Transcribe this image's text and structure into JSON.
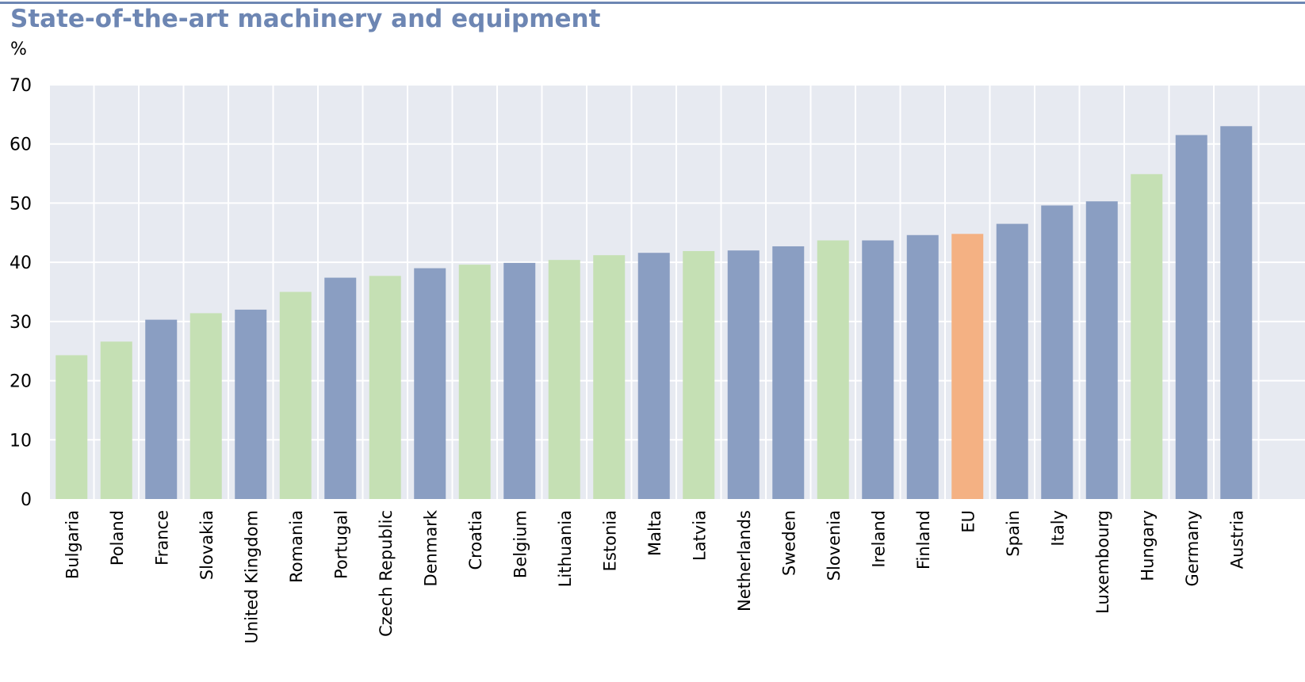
{
  "chart_data": {
    "type": "bar",
    "title": "State-of-the-art machinery and equipment",
    "ylabel": "%",
    "xlabel": "",
    "ylim": [
      0,
      70
    ],
    "yticks": [
      0,
      10,
      20,
      30,
      40,
      50,
      60,
      70
    ],
    "grid": true,
    "legend": "none",
    "colors": {
      "blue": "#8a9ec2",
      "green": "#c5e0b4",
      "eu": "#f4b183",
      "plot_background": "#e7eaf1",
      "gridline": "#ffffff",
      "title": "#6d86b3"
    },
    "categories": [
      "Bulgaria",
      "Poland",
      "France",
      "Slovakia",
      "United Kingdom",
      "Romania",
      "Portugal",
      "Czech Republic",
      "Denmark",
      "Croatia",
      "Belgium",
      "Lithuania",
      "Estonia",
      "Malta",
      "Latvia",
      "Netherlands",
      "Sweden",
      "Slovenia",
      "Ireland",
      "Finland",
      "EU",
      "Spain",
      "Italy",
      "Luxembourg",
      "Hungary",
      "Germany",
      "Austria"
    ],
    "values": [
      24.3,
      26.6,
      30.3,
      31.4,
      32.0,
      35.0,
      37.4,
      37.7,
      39.0,
      39.6,
      39.9,
      40.4,
      41.2,
      41.6,
      41.9,
      42.0,
      42.7,
      43.7,
      43.7,
      44.6,
      44.8,
      46.5,
      49.6,
      50.3,
      54.9,
      61.5,
      63.0
    ],
    "bar_colors": [
      "green",
      "green",
      "blue",
      "green",
      "blue",
      "green",
      "blue",
      "green",
      "blue",
      "green",
      "blue",
      "green",
      "green",
      "blue",
      "green",
      "blue",
      "blue",
      "green",
      "blue",
      "blue",
      "eu",
      "blue",
      "blue",
      "blue",
      "green",
      "blue",
      "blue"
    ]
  }
}
